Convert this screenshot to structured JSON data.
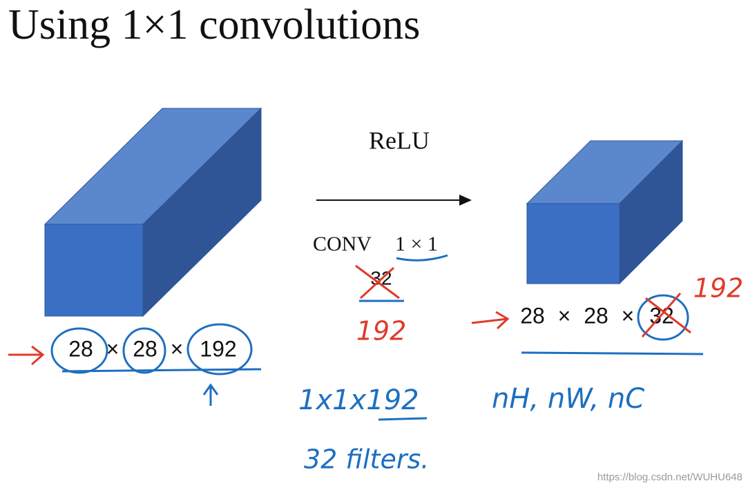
{
  "title": "Using 1×1 convolutions",
  "operation": {
    "activation": "ReLU",
    "conv": "CONV",
    "kernel": "1 × 1",
    "filters_crossed": "32",
    "filters_new": "192"
  },
  "input": {
    "dims": [
      "28",
      "28",
      "192"
    ],
    "separator": "×"
  },
  "output": {
    "dims": [
      "28",
      "28",
      "32"
    ],
    "separator": "×",
    "correction": "192"
  },
  "notes": [
    "1x1x192",
    "32 filters.",
    "nH, nW, nC"
  ],
  "watermark": "https://blog.csdn.net/WUHU648"
}
